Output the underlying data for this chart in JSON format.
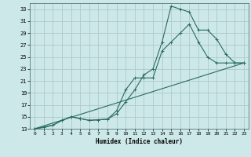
{
  "xlabel": "Humidex (Indice chaleur)",
  "bg_color": "#cce8e8",
  "grid_color": "#b0c8c8",
  "line_color": "#2a6b60",
  "xlim": [
    -0.5,
    23.5
  ],
  "ylim": [
    13,
    34
  ],
  "xticks": [
    0,
    1,
    2,
    3,
    4,
    5,
    6,
    7,
    8,
    9,
    10,
    11,
    12,
    13,
    14,
    15,
    16,
    17,
    18,
    19,
    20,
    21,
    22,
    23
  ],
  "yticks": [
    13,
    15,
    17,
    19,
    21,
    23,
    25,
    27,
    29,
    31,
    33
  ],
  "line1_x": [
    0,
    1,
    2,
    3,
    4,
    5,
    6,
    7,
    8,
    9,
    10,
    11,
    12,
    13,
    14,
    15,
    16,
    17,
    18,
    19,
    20,
    21,
    22,
    23
  ],
  "line1_y": [
    13,
    13.2,
    13.6,
    14.4,
    15.0,
    14.7,
    14.4,
    14.5,
    14.6,
    15.5,
    17.5,
    19.5,
    22.0,
    23.0,
    27.5,
    33.5,
    33.0,
    32.5,
    29.5,
    29.5,
    28.0,
    25.5,
    24.0,
    24.0
  ],
  "line2_x": [
    0,
    2,
    3,
    4,
    5,
    6,
    7,
    8,
    9,
    10,
    11,
    12,
    13,
    14,
    15,
    16,
    17,
    18,
    19,
    20,
    21,
    22,
    23
  ],
  "line2_y": [
    13,
    13.6,
    14.4,
    15.0,
    14.7,
    14.4,
    14.5,
    14.6,
    16.0,
    19.5,
    21.5,
    21.5,
    21.5,
    26.0,
    27.5,
    29.0,
    30.5,
    27.5,
    25.0,
    24.0,
    24.0,
    24.0,
    24.0
  ],
  "line3_x": [
    0,
    23
  ],
  "line3_y": [
    13,
    24
  ]
}
